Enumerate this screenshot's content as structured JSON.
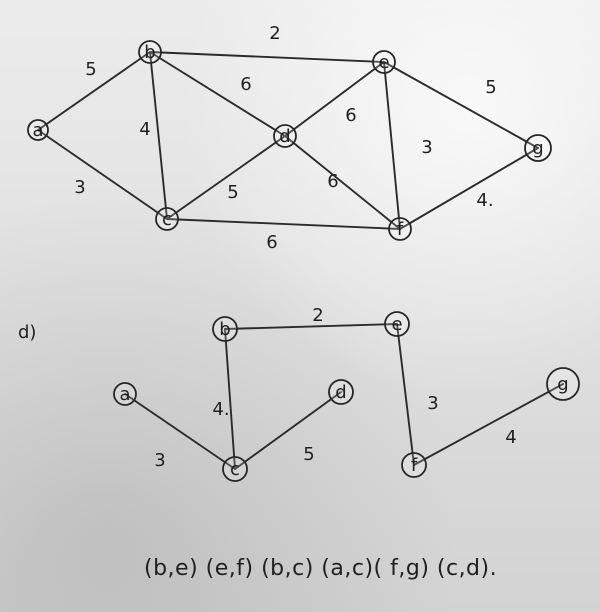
{
  "graph": {
    "nodes": [
      {
        "id": "a",
        "label": "a"
      },
      {
        "id": "b",
        "label": "b"
      },
      {
        "id": "c",
        "label": "c"
      },
      {
        "id": "d",
        "label": "d"
      },
      {
        "id": "e",
        "label": "e"
      },
      {
        "id": "f",
        "label": "f"
      },
      {
        "id": "g",
        "label": "g"
      }
    ],
    "edges": [
      {
        "id": "a-b",
        "label": "5"
      },
      {
        "id": "a-c",
        "label": "3"
      },
      {
        "id": "b-c",
        "label": "4"
      },
      {
        "id": "b-d",
        "label": "6"
      },
      {
        "id": "b-e",
        "label": "2"
      },
      {
        "id": "c-d",
        "label": "5"
      },
      {
        "id": "c-f",
        "label": "6"
      },
      {
        "id": "d-e",
        "label": "6"
      },
      {
        "id": "d-f",
        "label": "6"
      },
      {
        "id": "e-f",
        "label": "3"
      },
      {
        "id": "e-g",
        "label": "5"
      },
      {
        "id": "f-g",
        "label": "4."
      }
    ]
  },
  "solution": {
    "section_label": "d)",
    "nodes": [
      {
        "id": "a",
        "label": "a"
      },
      {
        "id": "b",
        "label": "b"
      },
      {
        "id": "c",
        "label": "c"
      },
      {
        "id": "d",
        "label": "d"
      },
      {
        "id": "e",
        "label": "e"
      },
      {
        "id": "f",
        "label": "f"
      },
      {
        "id": "g",
        "label": "g"
      }
    ],
    "edges": [
      {
        "id": "b-e",
        "label": "2"
      },
      {
        "id": "b-c",
        "label": "4."
      },
      {
        "id": "a-c",
        "label": "3"
      },
      {
        "id": "c-d",
        "label": "5"
      },
      {
        "id": "e-f",
        "label": "3"
      },
      {
        "id": "f-g",
        "label": "4"
      }
    ],
    "edge_list": "(b,e) (e,f) (b,c) (a,c)( f,g) (c,d)."
  }
}
